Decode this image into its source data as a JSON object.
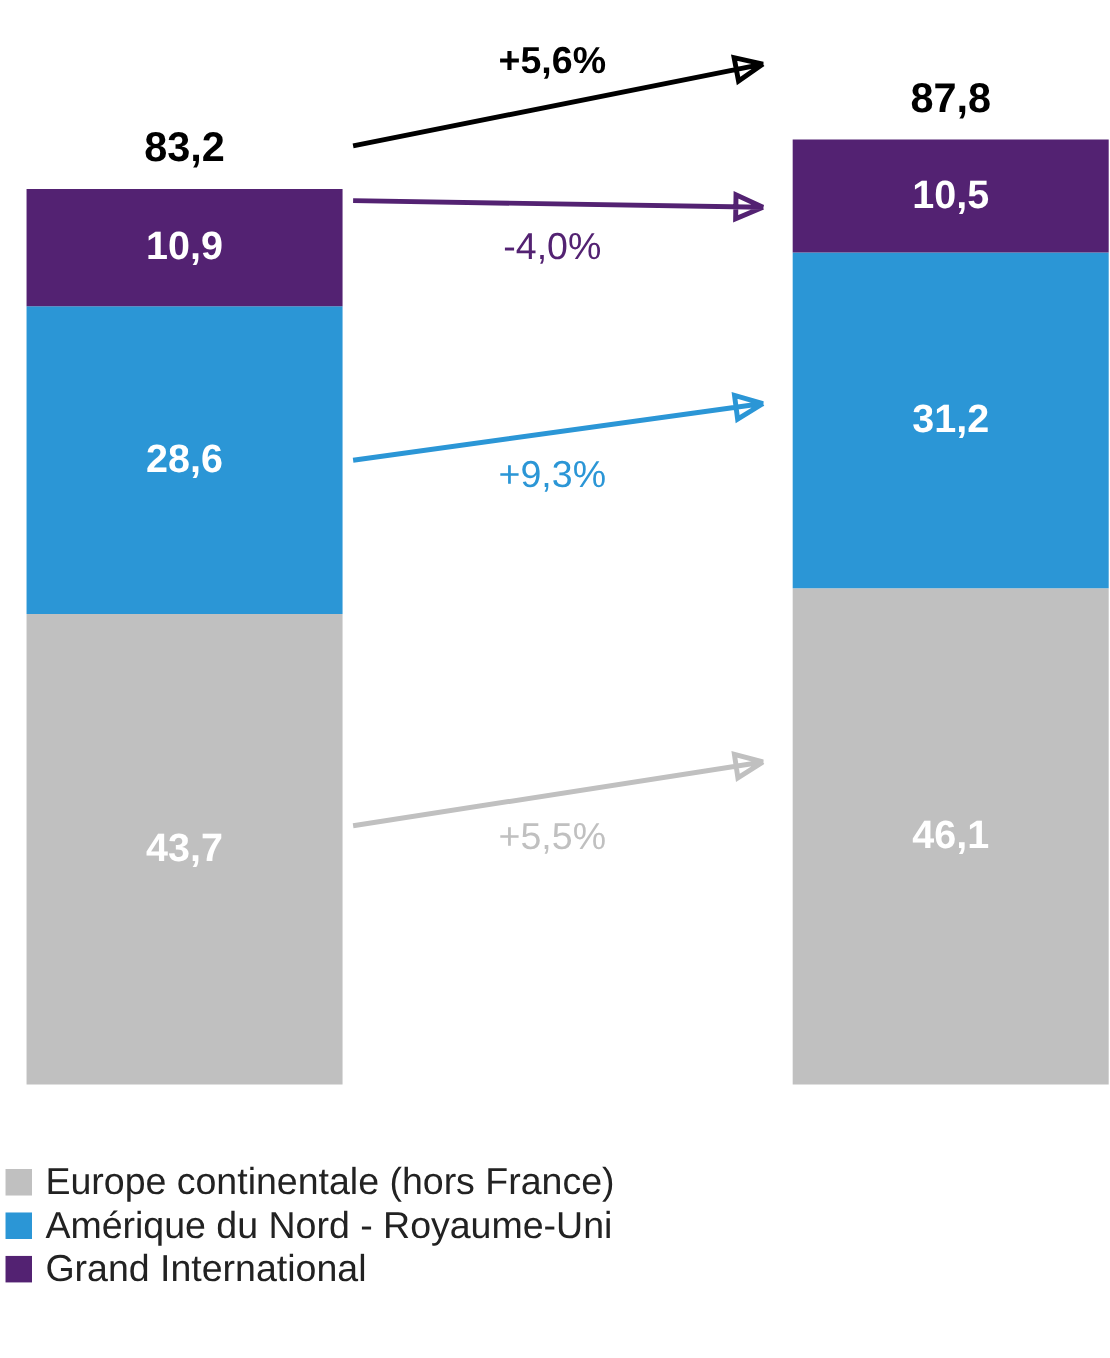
{
  "chart_data": {
    "type": "bar",
    "stacked": true,
    "categories": [
      null,
      null
    ],
    "series": [
      {
        "name": "Europe continentale (hors France)",
        "color": "#c0c0c0",
        "values": [
          43.7,
          46.1
        ],
        "value_labels": [
          "43,7",
          "46,1"
        ]
      },
      {
        "name": "Amérique du Nord - Royaume-Uni",
        "color": "#2b96d6",
        "values": [
          28.6,
          31.2
        ],
        "value_labels": [
          "28,6",
          "31,2"
        ]
      },
      {
        "name": "Grand International",
        "color": "#532272",
        "values": [
          10.9,
          10.5
        ],
        "value_labels": [
          "10,9",
          "10,5"
        ]
      }
    ],
    "totals": [
      "83,2",
      "87,8"
    ],
    "annotations": [
      "+5,6%",
      "+5,5%",
      "+9,3%",
      "-4,0%"
    ],
    "legend": "bottom",
    "grid": false
  }
}
